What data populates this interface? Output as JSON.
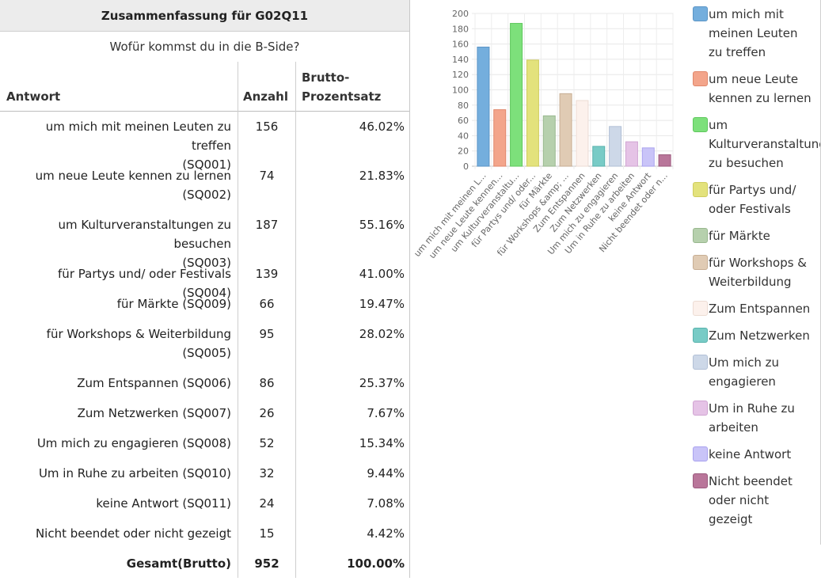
{
  "summary": {
    "title": "Zusammenfassung für G02Q11",
    "question": "Wofür kommst du in die B-Side?",
    "columns": {
      "answer": "Antwort",
      "count": "Anzahl",
      "percent_line1": "Brutto-",
      "percent_line2": "Prozentsatz"
    },
    "rows": [
      {
        "answer_line1": "um mich mit meinen Leuten zu treffen",
        "answer_line2": "(SQ001)",
        "count": "156",
        "percent": "46.02%"
      },
      {
        "answer_line1": "um neue Leute kennen zu lernen",
        "answer_line2": "(SQ002)",
        "count": "74",
        "percent": "21.83%"
      },
      {
        "answer_line1": "um Kulturveranstaltungen zu besuchen",
        "answer_line2": "(SQ003)",
        "count": "187",
        "percent": "55.16%"
      },
      {
        "answer_line1": "für Partys und/ oder Festivals (SQ004)",
        "count": "139",
        "percent": "41.00%"
      },
      {
        "answer_line1": "für Märkte (SQ009)",
        "count": "66",
        "percent": "19.47%"
      },
      {
        "answer_line1": "für Workshops & Weiterbildung",
        "answer_line2": "(SQ005)",
        "count": "95",
        "percent": "28.02%"
      },
      {
        "answer_line1": "Zum Entspannen (SQ006)",
        "count": "86",
        "percent": "25.37%"
      },
      {
        "answer_line1": "Zum Netzwerken (SQ007)",
        "count": "26",
        "percent": "7.67%"
      },
      {
        "answer_line1": "Um mich zu engagieren (SQ008)",
        "count": "52",
        "percent": "15.34%"
      },
      {
        "answer_line1": "Um in Ruhe zu arbeiten (SQ010)",
        "count": "32",
        "percent": "9.44%"
      },
      {
        "answer_line1": "keine Antwort (SQ011)",
        "count": "24",
        "percent": "7.08%"
      },
      {
        "answer_line1": "Nicht beendet oder nicht gezeigt",
        "count": "15",
        "percent": "4.42%"
      }
    ],
    "total": {
      "label": "Gesamt(Brutto)",
      "count": "952",
      "percent": "100.00%"
    }
  },
  "chart_data": {
    "type": "bar",
    "title": "",
    "xlabel": "",
    "ylabel": "",
    "ylim": [
      0,
      200
    ],
    "yticks": [
      0,
      20,
      40,
      60,
      80,
      100,
      120,
      140,
      160,
      180,
      200
    ],
    "categories": [
      "um mich mit meinen L...",
      "um neue Leute kennen...",
      "um Kulturveranstaltu...",
      "für Partys und/ oder...",
      "für Märkte",
      "für Workshops &amp; ...",
      "Zum Entspannen",
      "Zum Netzwerken",
      "Um mich zu engagieren",
      "Um in Ruhe zu arbeiten",
      "keine Antwort",
      "Nicht beendet oder n..."
    ],
    "values": [
      156,
      74,
      187,
      139,
      66,
      95,
      86,
      26,
      52,
      32,
      24,
      15
    ],
    "colors": [
      "#74aedd",
      "#f3a58b",
      "#7de07b",
      "#e3e27c",
      "#b6d0ad",
      "#e0cbb4",
      "#fcf1ec",
      "#78cbc6",
      "#cdd8e8",
      "#e5c3e6",
      "#c9c4f8",
      "#b9769a"
    ],
    "borders": [
      "#5b95c6",
      "#e0876b",
      "#5fc85d",
      "#cfcd5e",
      "#98b78e",
      "#c7ae94",
      "#ecdcd3",
      "#58b2ac",
      "#b2c0d6",
      "#d0a4d2",
      "#a9a2ef",
      "#9c5a7e"
    ],
    "legend": [
      [
        "um mich mit",
        "meinen Leuten",
        "zu treffen"
      ],
      [
        "um neue Leute",
        "kennen zu lernen"
      ],
      [
        "um",
        "Kulturveranstaltung",
        "zu besuchen"
      ],
      [
        "für Partys und/",
        "oder Festivals"
      ],
      [
        "für Märkte"
      ],
      [
        "für Workshops &",
        "Weiterbildung"
      ],
      [
        "Zum Entspannen"
      ],
      [
        "Zum Netzwerken"
      ],
      [
        "Um mich zu",
        "engagieren"
      ],
      [
        "Um in Ruhe zu",
        "arbeiten"
      ],
      [
        "keine Antwort"
      ],
      [
        "Nicht beendet",
        "oder nicht",
        "gezeigt"
      ]
    ],
    "legend_position": "right",
    "grid": true
  }
}
